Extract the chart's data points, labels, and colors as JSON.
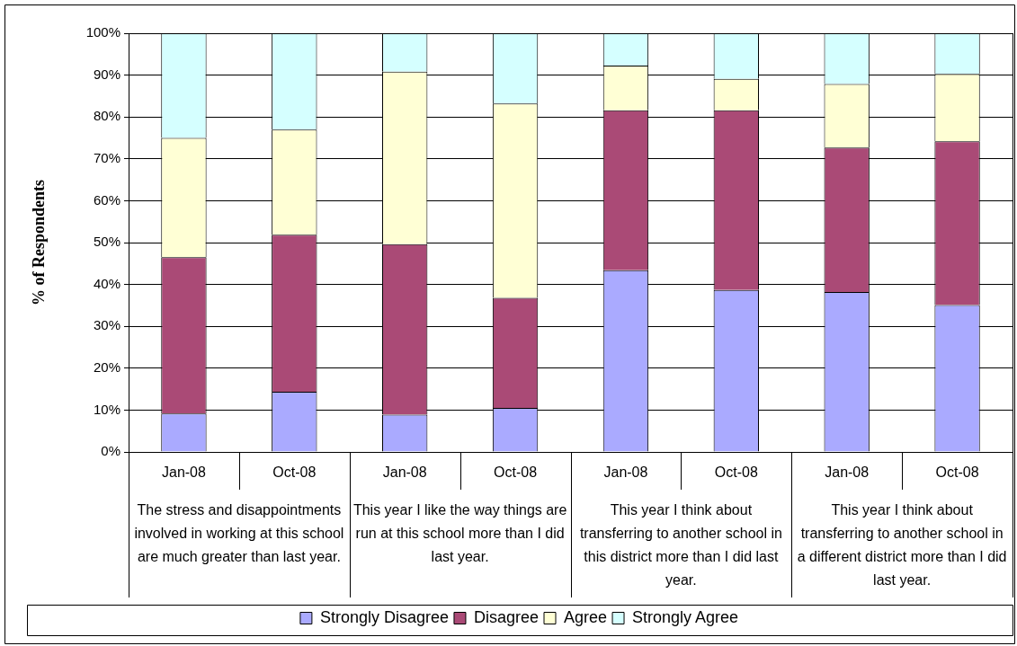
{
  "chart_data": {
    "type": "bar",
    "stacked": true,
    "ylabel": "% of Respondents",
    "categories": [
      "Jan-08",
      "Oct-08",
      "Jan-08",
      "Oct-08",
      "Jan-08",
      "Oct-08",
      "Jan-08",
      "Oct-08"
    ],
    "series": [
      {
        "name": "Strongly Disagree",
        "color": "#aaaaff",
        "values": [
          9.2,
          14.4,
          8.9,
          10.5,
          43.4,
          38.7,
          38.2,
          35.1
        ]
      },
      {
        "name": "Disagree",
        "color": "#aa4a76",
        "values": [
          37.3,
          37.5,
          40.7,
          26.3,
          38.2,
          42.9,
          34.5,
          39.1
        ]
      },
      {
        "name": "Agree",
        "color": "#ffffd5",
        "values": [
          28.5,
          25.1,
          41.2,
          46.4,
          10.7,
          7.5,
          15.2,
          16.1
        ]
      },
      {
        "name": "Strongly Agree",
        "color": "#d5ffff",
        "values": [
          25,
          23,
          9.2,
          16.8,
          7.7,
          10.9,
          12.1,
          9.7
        ]
      }
    ],
    "ylim": [
      0,
      100
    ],
    "yticks": [
      {
        "value": 0,
        "label": "0%"
      },
      {
        "value": 10,
        "label": "10%"
      },
      {
        "value": 20,
        "label": "20%"
      },
      {
        "value": 30,
        "label": "30%"
      },
      {
        "value": 40,
        "label": "40%"
      },
      {
        "value": 50,
        "label": "50%"
      },
      {
        "value": 60,
        "label": "60%"
      },
      {
        "value": 70,
        "label": "70%"
      },
      {
        "value": 80,
        "label": "80%"
      },
      {
        "value": 90,
        "label": "90%"
      },
      {
        "value": 100,
        "label": "100%"
      }
    ],
    "grid": "y",
    "legend": "bottom",
    "annotations": [
      "The stress and disappointments involved in working at this school are much greater than last year.",
      "This year I like the way things are run at this school more than I did last year.",
      "This year I think about transferring to another school in this district more than I did last year.",
      "This year I think about transferring to another school in a different district more than I did last year."
    ]
  }
}
